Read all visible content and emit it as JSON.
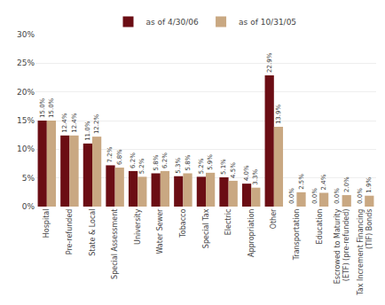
{
  "chart_data": {
    "type": "bar",
    "categories": [
      "Hospital",
      "Pre-refunded",
      "State & Local",
      "Special Assessment",
      "University",
      "Water Sewer",
      "Tobacco",
      "Special Tax",
      "Electric",
      "Appropriation",
      "Other",
      "Transportation",
      "Education",
      "Escrowed to Maturity\n(ETF) (pre-refunded)",
      "Tax Increment Financing\n(TIF) Bonds"
    ],
    "series": [
      {
        "name": "as of 4/30/06",
        "color": "#6b0d14",
        "values": [
          15.0,
          12.4,
          11.0,
          7.2,
          6.2,
          5.8,
          5.3,
          5.2,
          5.1,
          4.0,
          22.9,
          0.0,
          0.0,
          0.0,
          0.0
        ],
        "value_labels": [
          "15.0%",
          "12.4%",
          "11.0%",
          "7.2%",
          "6.2%",
          "5.8%",
          "5.3%",
          "5.2%",
          "5.1%",
          "4.0%",
          "22.9%",
          "0.0%",
          "0.0%",
          "0.0%",
          "0.0%"
        ]
      },
      {
        "name": "as of 10/31/05",
        "color": "#c9a882",
        "values": [
          15.0,
          12.4,
          12.2,
          6.8,
          5.2,
          6.2,
          5.8,
          5.9,
          4.5,
          3.3,
          13.9,
          2.5,
          2.4,
          2.0,
          1.9
        ],
        "value_labels": [
          "15.0%",
          "12.4%",
          "12.2%",
          "6.8%",
          "5.2%",
          "6.2%",
          "5.8%",
          "5.9%",
          "4.5%",
          "3.3%",
          "13.9%",
          "2.5%",
          "2.4%",
          "2.0%",
          "1.9%"
        ]
      }
    ],
    "ylim": [
      0,
      30
    ],
    "yticks": [
      {
        "value": 0,
        "label": "0%"
      },
      {
        "value": 5,
        "label": "5%"
      },
      {
        "value": 10,
        "label": "10%"
      },
      {
        "value": 15,
        "label": "15%"
      },
      {
        "value": 20,
        "label": "20%"
      },
      {
        "value": 25,
        "label": "25%"
      },
      {
        "value": 30,
        "label": "30%"
      }
    ],
    "grid": true,
    "legend": "upper center",
    "data_labels": true
  }
}
